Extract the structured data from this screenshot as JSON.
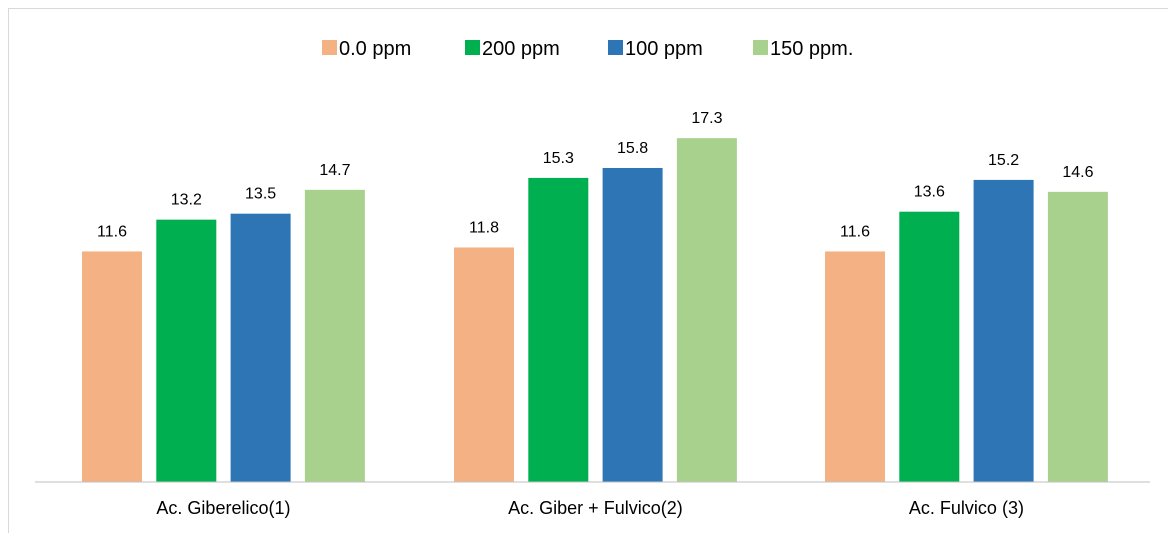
{
  "chart_data": {
    "type": "bar",
    "categories": [
      "Ac. Giberelico(1)",
      "Ac. Giber + Fulvico(2)",
      "Ac. Fulvico (3)"
    ],
    "series": [
      {
        "name": "0.0 ppm",
        "color": "#f4b183",
        "values": [
          11.6,
          11.8,
          11.6
        ]
      },
      {
        "name": "200 ppm",
        "color": "#00b050",
        "values": [
          13.2,
          15.3,
          13.6
        ]
      },
      {
        "name": "100 ppm",
        "color": "#2e75b6",
        "values": [
          13.5,
          15.8,
          15.2
        ]
      },
      {
        "name": "150 ppm.",
        "color": "#a9d18e",
        "values": [
          14.7,
          17.3,
          14.6
        ]
      }
    ],
    "data_labels": [
      [
        "11.6",
        "13.2",
        "13.5",
        "14.7"
      ],
      [
        "11.8",
        "15.3",
        "15.8",
        "17.3"
      ],
      [
        "11.6",
        "13.6",
        "15.2",
        "14.6"
      ]
    ],
    "ylim": [
      0,
      24
    ],
    "grid": false,
    "legend_position": "top"
  }
}
